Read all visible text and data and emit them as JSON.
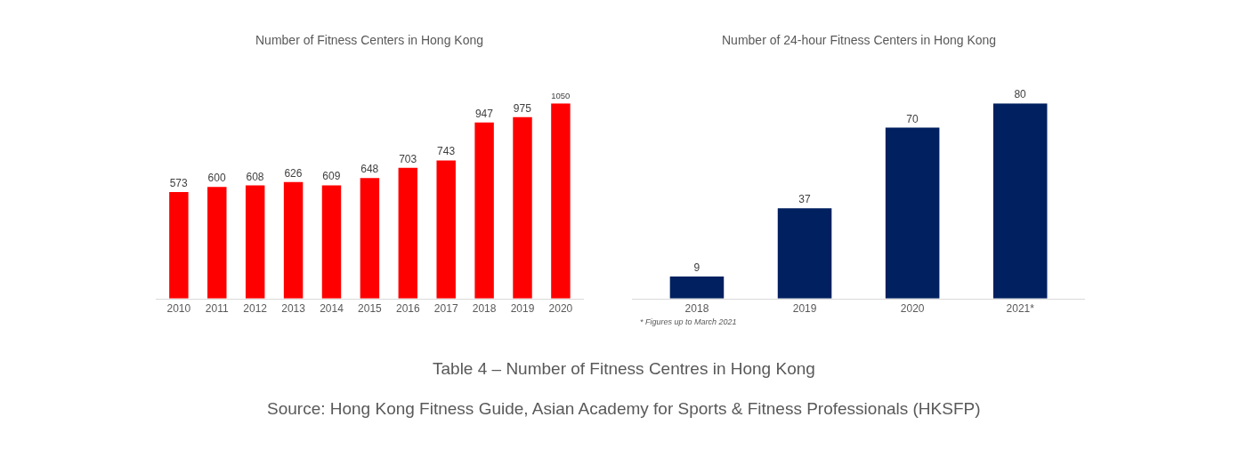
{
  "chart_data": [
    {
      "type": "bar",
      "title": "Number of Fitness Centers in Hong Kong",
      "categories": [
        "2010",
        "2011",
        "2012",
        "2013",
        "2014",
        "2015",
        "2016",
        "2017",
        "2018",
        "2019",
        "2020"
      ],
      "values": [
        573,
        600,
        608,
        626,
        609,
        648,
        703,
        743,
        947,
        975,
        1050
      ],
      "color": "#ff0000",
      "data_labels": true,
      "relative": false,
      "annotations": [
        "Table 4 – Number of Fitness Centres in Hong Kong",
        "Source: Hong Kong Fitness Guide, Asian Academy for Sports & Fitness Professionals (HKSFP)"
      ]
    },
    {
      "type": "bar",
      "title": "Number of 24-hour Fitness Centers in Hong Kong",
      "categories": [
        "2018",
        "2019",
        "2020",
        "2021*"
      ],
      "values": [
        9,
        37,
        70,
        80
      ],
      "color": "#002060",
      "data_labels": true,
      "relative": false,
      "annotations": [
        "* Figures up to March 2021"
      ]
    }
  ]
}
